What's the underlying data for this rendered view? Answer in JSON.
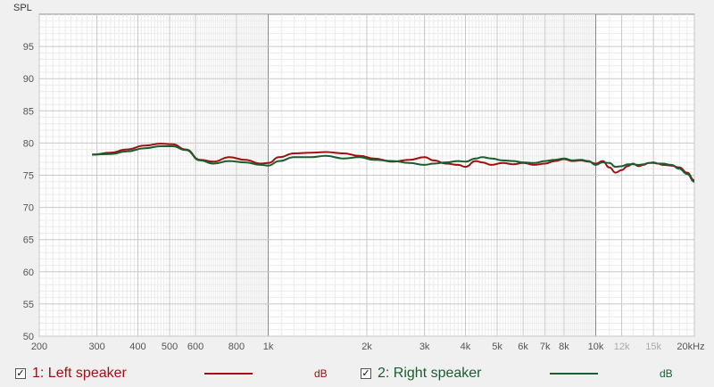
{
  "chart_data": {
    "type": "line",
    "ylabel": "SPL",
    "xunit": "Hz",
    "ylim": [
      50,
      100
    ],
    "xlim": [
      200,
      20000
    ],
    "xscale": "log",
    "grid": true,
    "yticks": [
      {
        "v": 95,
        "label": "95"
      },
      {
        "v": 90,
        "label": "90"
      },
      {
        "v": 85,
        "label": "85"
      },
      {
        "v": 80,
        "label": "80"
      },
      {
        "v": 75,
        "label": "75"
      },
      {
        "v": 70,
        "label": "70"
      },
      {
        "v": 65,
        "label": "65"
      },
      {
        "v": 60,
        "label": "60"
      },
      {
        "v": 55,
        "label": "55"
      },
      {
        "v": 50,
        "label": "50"
      }
    ],
    "xticks": [
      {
        "v": 200,
        "label": "200",
        "minor": false
      },
      {
        "v": 300,
        "label": "300",
        "minor": false
      },
      {
        "v": 400,
        "label": "400",
        "minor": false
      },
      {
        "v": 500,
        "label": "500",
        "minor": false
      },
      {
        "v": 600,
        "label": "600",
        "minor": false
      },
      {
        "v": 800,
        "label": "800",
        "minor": false
      },
      {
        "v": 1000,
        "label": "1k",
        "minor": false
      },
      {
        "v": 2000,
        "label": "2k",
        "minor": false
      },
      {
        "v": 3000,
        "label": "3k",
        "minor": false
      },
      {
        "v": 4000,
        "label": "4k",
        "minor": false
      },
      {
        "v": 5000,
        "label": "5k",
        "minor": false
      },
      {
        "v": 6000,
        "label": "6k",
        "minor": false
      },
      {
        "v": 7000,
        "label": "7k",
        "minor": false
      },
      {
        "v": 8000,
        "label": "8k",
        "minor": false
      },
      {
        "v": 10000,
        "label": "10k",
        "minor": false
      },
      {
        "v": 12000,
        "label": "12k",
        "minor": true
      },
      {
        "v": 15000,
        "label": "15k",
        "minor": true
      },
      {
        "v": 20000,
        "label": "20kHz",
        "minor": false
      }
    ],
    "series": [
      {
        "name": "1: Left speaker",
        "unit": "dB",
        "color": "#a01010",
        "x": [
          290,
          330,
          370,
          420,
          470,
          510,
          560,
          620,
          680,
          760,
          850,
          950,
          1000,
          1080,
          1200,
          1350,
          1500,
          1700,
          1900,
          2100,
          2400,
          2700,
          3000,
          3200,
          3500,
          3800,
          4000,
          4300,
          4500,
          4800,
          5200,
          5600,
          6000,
          6500,
          7000,
          7500,
          8000,
          8500,
          9000,
          9500,
          10000,
          10500,
          11000,
          11500,
          12000,
          12500,
          13000,
          13500,
          14000,
          14500,
          15000,
          15500,
          16000,
          17000,
          18000,
          19000,
          20000
        ],
        "y": [
          78.2,
          78.5,
          79.0,
          79.6,
          79.9,
          79.8,
          79.0,
          77.4,
          77.1,
          77.8,
          77.4,
          76.8,
          76.9,
          77.8,
          78.4,
          78.5,
          78.6,
          78.4,
          78.0,
          77.6,
          77.1,
          77.4,
          77.8,
          77.3,
          76.8,
          76.6,
          76.3,
          77.2,
          77.0,
          76.6,
          76.9,
          76.7,
          76.9,
          76.6,
          76.8,
          77.2,
          77.5,
          77.2,
          77.3,
          77.1,
          76.8,
          77.2,
          76.2,
          75.4,
          75.8,
          76.4,
          76.8,
          76.4,
          76.6,
          76.9,
          77.0,
          76.8,
          76.6,
          76.5,
          76.2,
          75.4,
          74.2
        ]
      },
      {
        "name": "2: Right speaker",
        "unit": "dB",
        "color": "#1a5e30",
        "x": [
          290,
          330,
          370,
          420,
          470,
          510,
          560,
          620,
          680,
          760,
          850,
          950,
          1000,
          1080,
          1200,
          1350,
          1500,
          1700,
          1900,
          2100,
          2400,
          2700,
          3000,
          3200,
          3500,
          3800,
          4000,
          4300,
          4500,
          4800,
          5200,
          5600,
          6000,
          6500,
          7000,
          7500,
          8000,
          8500,
          9000,
          9500,
          10000,
          10500,
          11000,
          11500,
          12000,
          12500,
          13000,
          13500,
          14000,
          14500,
          15000,
          15500,
          16000,
          17000,
          18000,
          19000,
          20000
        ],
        "y": [
          78.2,
          78.3,
          78.7,
          79.2,
          79.5,
          79.5,
          78.9,
          77.3,
          76.8,
          77.2,
          77.0,
          76.6,
          76.5,
          77.2,
          77.8,
          77.8,
          78.0,
          77.6,
          77.8,
          77.4,
          77.2,
          76.9,
          76.6,
          76.8,
          77.0,
          77.2,
          77.1,
          77.6,
          77.8,
          77.6,
          77.3,
          77.2,
          77.0,
          76.9,
          77.2,
          77.4,
          77.6,
          77.3,
          77.4,
          77.2,
          76.6,
          77.0,
          76.9,
          76.3,
          76.4,
          76.7,
          76.7,
          76.6,
          76.7,
          76.9,
          76.9,
          76.8,
          76.8,
          76.6,
          76.0,
          75.2,
          74.0
        ]
      }
    ]
  }
}
